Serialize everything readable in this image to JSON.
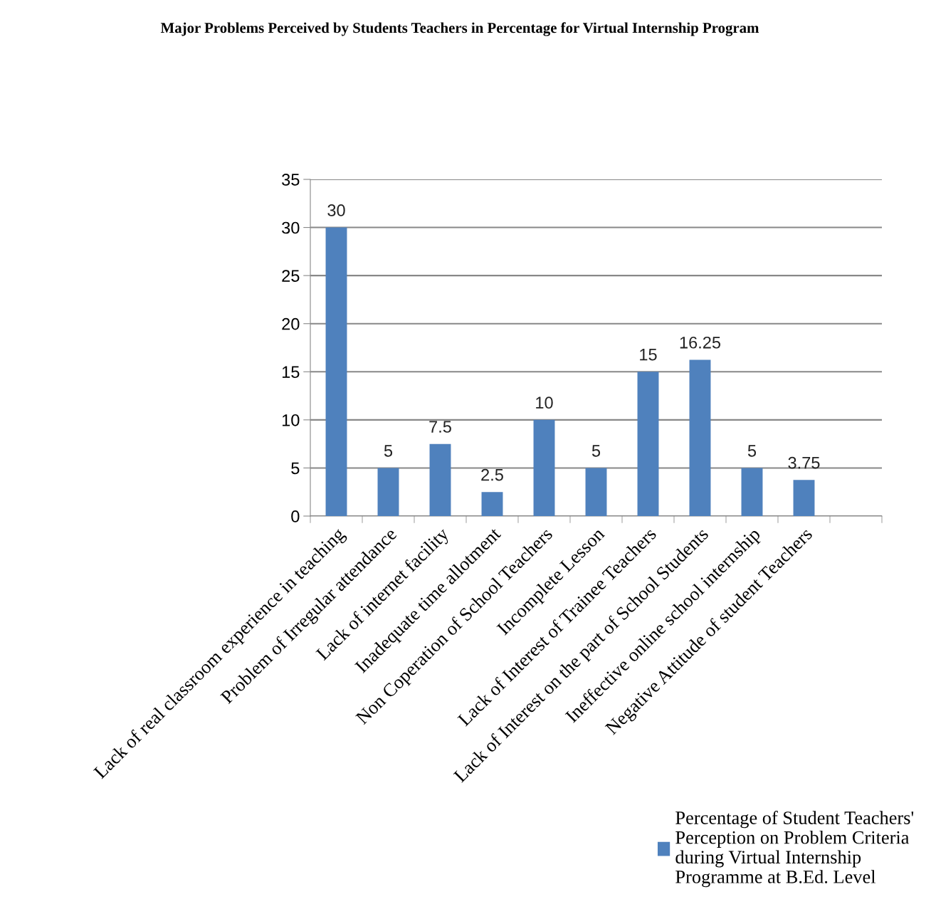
{
  "chart_data": {
    "type": "bar",
    "title": "Major Problems Perceived by Students Teachers in Percentage for Virtual Internship Program",
    "categories": [
      "Lack of real classroom experience in teaching",
      "Problem of Irregular attendance",
      "Lack of internet facility",
      "Inadequate time allotment",
      "Non Coperation of School Teachers",
      "Incomplete Lesson",
      "Lack of Interest of Trainee Teachers",
      "Lack of Interest on the part of School Students",
      "Ineffective online school internship",
      "Negative Attitude of student Teachers",
      null
    ],
    "series": [
      {
        "name": "Percentage of Student Teachers'\nPerception on Problem Criteria\nduring Virtual Internship\nProgramme at B.Ed. Level",
        "color": "#4f81bd",
        "values": [
          30,
          5,
          7.5,
          2.5,
          10,
          5,
          15,
          16.25,
          5,
          3.75,
          null
        ]
      }
    ],
    "ylim": [
      0,
      35
    ],
    "yticks": [
      0,
      5,
      10,
      15,
      20,
      25,
      30,
      35
    ],
    "grid": "y",
    "data_labels": true,
    "legend": "bottom right"
  }
}
